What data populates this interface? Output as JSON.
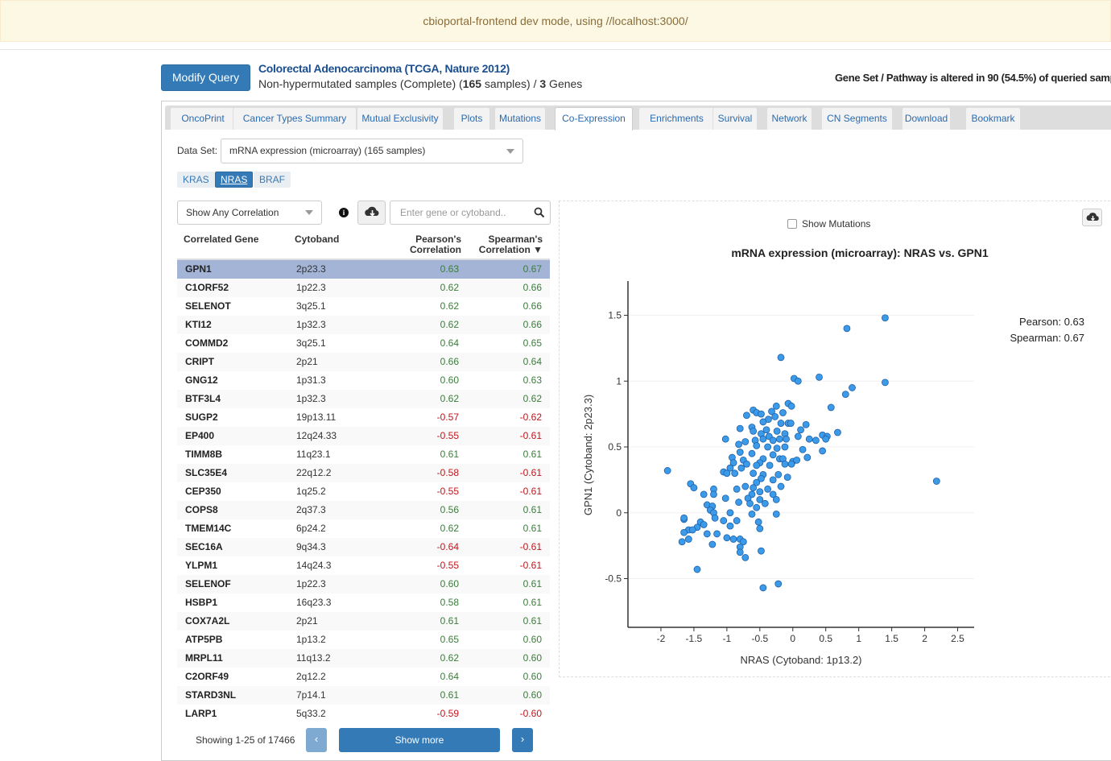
{
  "banner": "cbioportal-frontend dev mode, using //localhost:3000/",
  "header": {
    "modify_query": "Modify Query",
    "study_title": "Colorectal Adenocarcinoma (TCGA, Nature 2012)",
    "subtitle_prefix": "Non-hypermutated samples (Complete)  (",
    "sample_count": "165",
    "subtitle_mid": " samples) / ",
    "gene_count": "3",
    "subtitle_suffix": " Genes",
    "altered_text": "Gene Set / Pathway is altered in 90 (54.5%) of queried samp"
  },
  "tabs": [
    "OncoPrint",
    "Cancer Types Summary",
    "Mutual Exclusivity",
    "Plots",
    "Mutations",
    "Co-Expression",
    "Enrichments",
    "Survival",
    "Network",
    "CN Segments",
    "Download",
    "Bookmark"
  ],
  "active_tab": "Co-Expression",
  "dataset": {
    "label": "Data Set:",
    "value": "mRNA expression (microarray) (165 samples)"
  },
  "genes": [
    "KRAS",
    "NRAS",
    "BRAF"
  ],
  "active_gene": "NRAS",
  "correlation_filter": "Show Any Correlation",
  "search_placeholder": "Enter gene or cytoband..",
  "table": {
    "col_gene": "Correlated Gene",
    "col_cytoband": "Cytoband",
    "col_pearson_1": "Pearson's",
    "col_pearson_2": "Correlation",
    "col_spearman_1": "Spearman's",
    "col_spearman_2": "Correlation ▼",
    "rows": [
      {
        "gene": "GPN1",
        "cytoband": "2p23.3",
        "pearson": "0.63",
        "spearman": "0.67"
      },
      {
        "gene": "C1ORF52",
        "cytoband": "1p22.3",
        "pearson": "0.62",
        "spearman": "0.66"
      },
      {
        "gene": "SELENOT",
        "cytoband": "3q25.1",
        "pearson": "0.62",
        "spearman": "0.66"
      },
      {
        "gene": "KTI12",
        "cytoband": "1p32.3",
        "pearson": "0.62",
        "spearman": "0.66"
      },
      {
        "gene": "COMMD2",
        "cytoband": "3q25.1",
        "pearson": "0.64",
        "spearman": "0.65"
      },
      {
        "gene": "CRIPT",
        "cytoband": "2p21",
        "pearson": "0.66",
        "spearman": "0.64"
      },
      {
        "gene": "GNG12",
        "cytoband": "1p31.3",
        "pearson": "0.60",
        "spearman": "0.63"
      },
      {
        "gene": "BTF3L4",
        "cytoband": "1p32.3",
        "pearson": "0.62",
        "spearman": "0.62"
      },
      {
        "gene": "SUGP2",
        "cytoband": "19p13.11",
        "pearson": "-0.57",
        "spearman": "-0.62"
      },
      {
        "gene": "EP400",
        "cytoband": "12q24.33",
        "pearson": "-0.55",
        "spearman": "-0.61"
      },
      {
        "gene": "TIMM8B",
        "cytoband": "11q23.1",
        "pearson": "0.61",
        "spearman": "0.61"
      },
      {
        "gene": "SLC35E4",
        "cytoband": "22q12.2",
        "pearson": "-0.58",
        "spearman": "-0.61"
      },
      {
        "gene": "CEP350",
        "cytoband": "1q25.2",
        "pearson": "-0.55",
        "spearman": "-0.61"
      },
      {
        "gene": "COPS8",
        "cytoband": "2q37.3",
        "pearson": "0.56",
        "spearman": "0.61"
      },
      {
        "gene": "TMEM14C",
        "cytoband": "6p24.2",
        "pearson": "0.62",
        "spearman": "0.61"
      },
      {
        "gene": "SEC16A",
        "cytoband": "9q34.3",
        "pearson": "-0.64",
        "spearman": "-0.61"
      },
      {
        "gene": "YLPM1",
        "cytoband": "14q24.3",
        "pearson": "-0.55",
        "spearman": "-0.61"
      },
      {
        "gene": "SELENOF",
        "cytoband": "1p22.3",
        "pearson": "0.60",
        "spearman": "0.61"
      },
      {
        "gene": "HSBP1",
        "cytoband": "16q23.3",
        "pearson": "0.58",
        "spearman": "0.61"
      },
      {
        "gene": "COX7A2L",
        "cytoband": "2p21",
        "pearson": "0.61",
        "spearman": "0.61"
      },
      {
        "gene": "ATP5PB",
        "cytoband": "1p13.2",
        "pearson": "0.65",
        "spearman": "0.60"
      },
      {
        "gene": "MRPL11",
        "cytoband": "11q13.2",
        "pearson": "0.62",
        "spearman": "0.60"
      },
      {
        "gene": "C2ORF49",
        "cytoband": "2q12.2",
        "pearson": "0.64",
        "spearman": "0.60"
      },
      {
        "gene": "STARD3NL",
        "cytoband": "7p14.1",
        "pearson": "0.61",
        "spearman": "0.60"
      },
      {
        "gene": "LARP1",
        "cytoband": "5q33.2",
        "pearson": "-0.59",
        "spearman": "-0.60"
      }
    ],
    "showing": "Showing 1-25 of 17466",
    "show_more": "Show more",
    "prev": "‹",
    "next": "›"
  },
  "plot": {
    "show_mutations": "Show Mutations",
    "pearson_label": "Pearson: 0.63",
    "spearman_label": "Spearman: 0.67",
    "point_color": "#3c9be9"
  },
  "chart_data": {
    "type": "scatter",
    "title": "mRNA expression (microarray): NRAS vs. GPN1",
    "xlabel": "NRAS (Cytoband: 1p13.2)",
    "ylabel": "GPN1 (Cytoband: 2p23.3)",
    "xlim": [
      -2.5,
      2.75
    ],
    "ylim": [
      -0.87,
      1.76
    ],
    "xticks": [
      "-2",
      "-1.5",
      "-1",
      "-0.5",
      "0",
      "0.5",
      "1",
      "1.5",
      "2",
      "2.5"
    ],
    "yticks": [
      "-0.5",
      "0",
      "0.5",
      "1",
      "1.5"
    ],
    "points": [
      [
        1.4,
        1.48
      ],
      [
        0.82,
        1.4
      ],
      [
        -0.18,
        1.18
      ],
      [
        0.4,
        1.03
      ],
      [
        0.02,
        1.02
      ],
      [
        0.08,
        1.0
      ],
      [
        1.4,
        0.99
      ],
      [
        0.9,
        0.95
      ],
      [
        0.8,
        0.9
      ],
      [
        -0.07,
        0.83
      ],
      [
        -0.25,
        0.81
      ],
      [
        -0.02,
        0.81
      ],
      [
        0.58,
        0.8
      ],
      [
        -0.6,
        0.78
      ],
      [
        -0.55,
        0.76
      ],
      [
        -0.48,
        0.75
      ],
      [
        -0.32,
        0.77
      ],
      [
        -0.7,
        0.74
      ],
      [
        -0.15,
        0.76
      ],
      [
        -0.27,
        0.73
      ],
      [
        -0.37,
        0.71
      ],
      [
        -0.45,
        0.69
      ],
      [
        -0.07,
        0.68
      ],
      [
        -0.18,
        0.68
      ],
      [
        -0.03,
        0.68
      ],
      [
        0.2,
        0.67
      ],
      [
        -0.8,
        0.64
      ],
      [
        -0.62,
        0.65
      ],
      [
        -0.6,
        0.62
      ],
      [
        -0.4,
        0.63
      ],
      [
        -0.24,
        0.62
      ],
      [
        0.12,
        0.63
      ],
      [
        0.68,
        0.61
      ],
      [
        -0.48,
        0.6
      ],
      [
        -0.36,
        0.58
      ],
      [
        -0.12,
        0.6
      ],
      [
        0.08,
        0.58
      ],
      [
        0.45,
        0.59
      ],
      [
        0.52,
        0.58
      ],
      [
        0.5,
        0.56
      ],
      [
        -1.02,
        0.56
      ],
      [
        -0.72,
        0.54
      ],
      [
        -0.57,
        0.55
      ],
      [
        -0.45,
        0.56
      ],
      [
        -0.3,
        0.55
      ],
      [
        -0.2,
        0.56
      ],
      [
        -0.1,
        0.56
      ],
      [
        0.25,
        0.56
      ],
      [
        0.35,
        0.55
      ],
      [
        -0.82,
        0.52
      ],
      [
        -0.55,
        0.51
      ],
      [
        -0.38,
        0.5
      ],
      [
        -0.24,
        0.49
      ],
      [
        -0.12,
        0.5
      ],
      [
        0.15,
        0.48
      ],
      [
        0.45,
        0.47
      ],
      [
        -0.8,
        0.46
      ],
      [
        -0.62,
        0.45
      ],
      [
        -0.3,
        0.44
      ],
      [
        -0.92,
        0.42
      ],
      [
        -0.75,
        0.4
      ],
      [
        -0.45,
        0.41
      ],
      [
        -0.2,
        0.41
      ],
      [
        -0.15,
        0.41
      ],
      [
        0.0,
        0.39
      ],
      [
        0.06,
        0.4
      ],
      [
        0.22,
        0.42
      ],
      [
        -0.9,
        0.38
      ],
      [
        -0.7,
        0.37
      ],
      [
        -0.5,
        0.38
      ],
      [
        -0.55,
        0.36
      ],
      [
        -0.35,
        0.36
      ],
      [
        -0.12,
        0.37
      ],
      [
        -0.02,
        0.37
      ],
      [
        -0.95,
        0.34
      ],
      [
        -0.78,
        0.34
      ],
      [
        -1.05,
        0.31
      ],
      [
        -1.0,
        0.3
      ],
      [
        -0.88,
        0.3
      ],
      [
        -0.6,
        0.3
      ],
      [
        -0.45,
        0.29
      ],
      [
        -0.22,
        0.29
      ],
      [
        -0.08,
        0.27
      ],
      [
        -0.48,
        0.26
      ],
      [
        -0.3,
        0.25
      ],
      [
        -0.55,
        0.23
      ],
      [
        -0.72,
        0.2
      ],
      [
        -0.6,
        0.19
      ],
      [
        -0.38,
        0.18
      ],
      [
        -0.18,
        0.2
      ],
      [
        -1.55,
        0.22
      ],
      [
        -1.5,
        0.19
      ],
      [
        -1.2,
        0.18
      ],
      [
        -0.85,
        0.18
      ],
      [
        -1.2,
        0.14
      ],
      [
        -1.35,
        0.14
      ],
      [
        -0.5,
        0.16
      ],
      [
        -0.62,
        0.14
      ],
      [
        -0.3,
        0.14
      ],
      [
        -0.68,
        0.11
      ],
      [
        -0.5,
        0.1
      ],
      [
        -0.25,
        0.1
      ],
      [
        -1.02,
        0.11
      ],
      [
        -0.82,
        0.08
      ],
      [
        -0.65,
        0.07
      ],
      [
        -0.42,
        0.07
      ],
      [
        -1.3,
        0.06
      ],
      [
        -1.22,
        0.05
      ],
      [
        -0.55,
        0.04
      ],
      [
        -1.25,
        0.02
      ],
      [
        -1.2,
        0.0
      ],
      [
        -0.95,
        0.0
      ],
      [
        -0.62,
        -0.01
      ],
      [
        -0.25,
        -0.01
      ],
      [
        -1.18,
        -0.04
      ],
      [
        -1.05,
        -0.06
      ],
      [
        -1.4,
        -0.07
      ],
      [
        -1.65,
        -0.05
      ],
      [
        -1.65,
        -0.04
      ],
      [
        -1.35,
        -0.09
      ],
      [
        -0.85,
        -0.06
      ],
      [
        -0.52,
        -0.07
      ],
      [
        -0.95,
        -0.1
      ],
      [
        -1.45,
        -0.11
      ],
      [
        -0.5,
        -0.12
      ],
      [
        -1.58,
        -0.13
      ],
      [
        -1.52,
        -0.13
      ],
      [
        -1.65,
        -0.15
      ],
      [
        -1.3,
        -0.16
      ],
      [
        -1.15,
        -0.16
      ],
      [
        -1.0,
        -0.19
      ],
      [
        -0.9,
        -0.2
      ],
      [
        -0.8,
        -0.2
      ],
      [
        -1.58,
        -0.2
      ],
      [
        -0.75,
        -0.22
      ],
      [
        -1.68,
        -0.22
      ],
      [
        -1.22,
        -0.24
      ],
      [
        -0.8,
        -0.26
      ],
      [
        -0.48,
        -0.29
      ],
      [
        -0.8,
        -0.3
      ],
      [
        -0.72,
        -0.34
      ],
      [
        -1.45,
        -0.43
      ],
      [
        -0.22,
        -0.54
      ],
      [
        -0.45,
        -0.57
      ],
      [
        -1.9,
        0.32
      ],
      [
        2.18,
        0.24
      ]
    ]
  }
}
